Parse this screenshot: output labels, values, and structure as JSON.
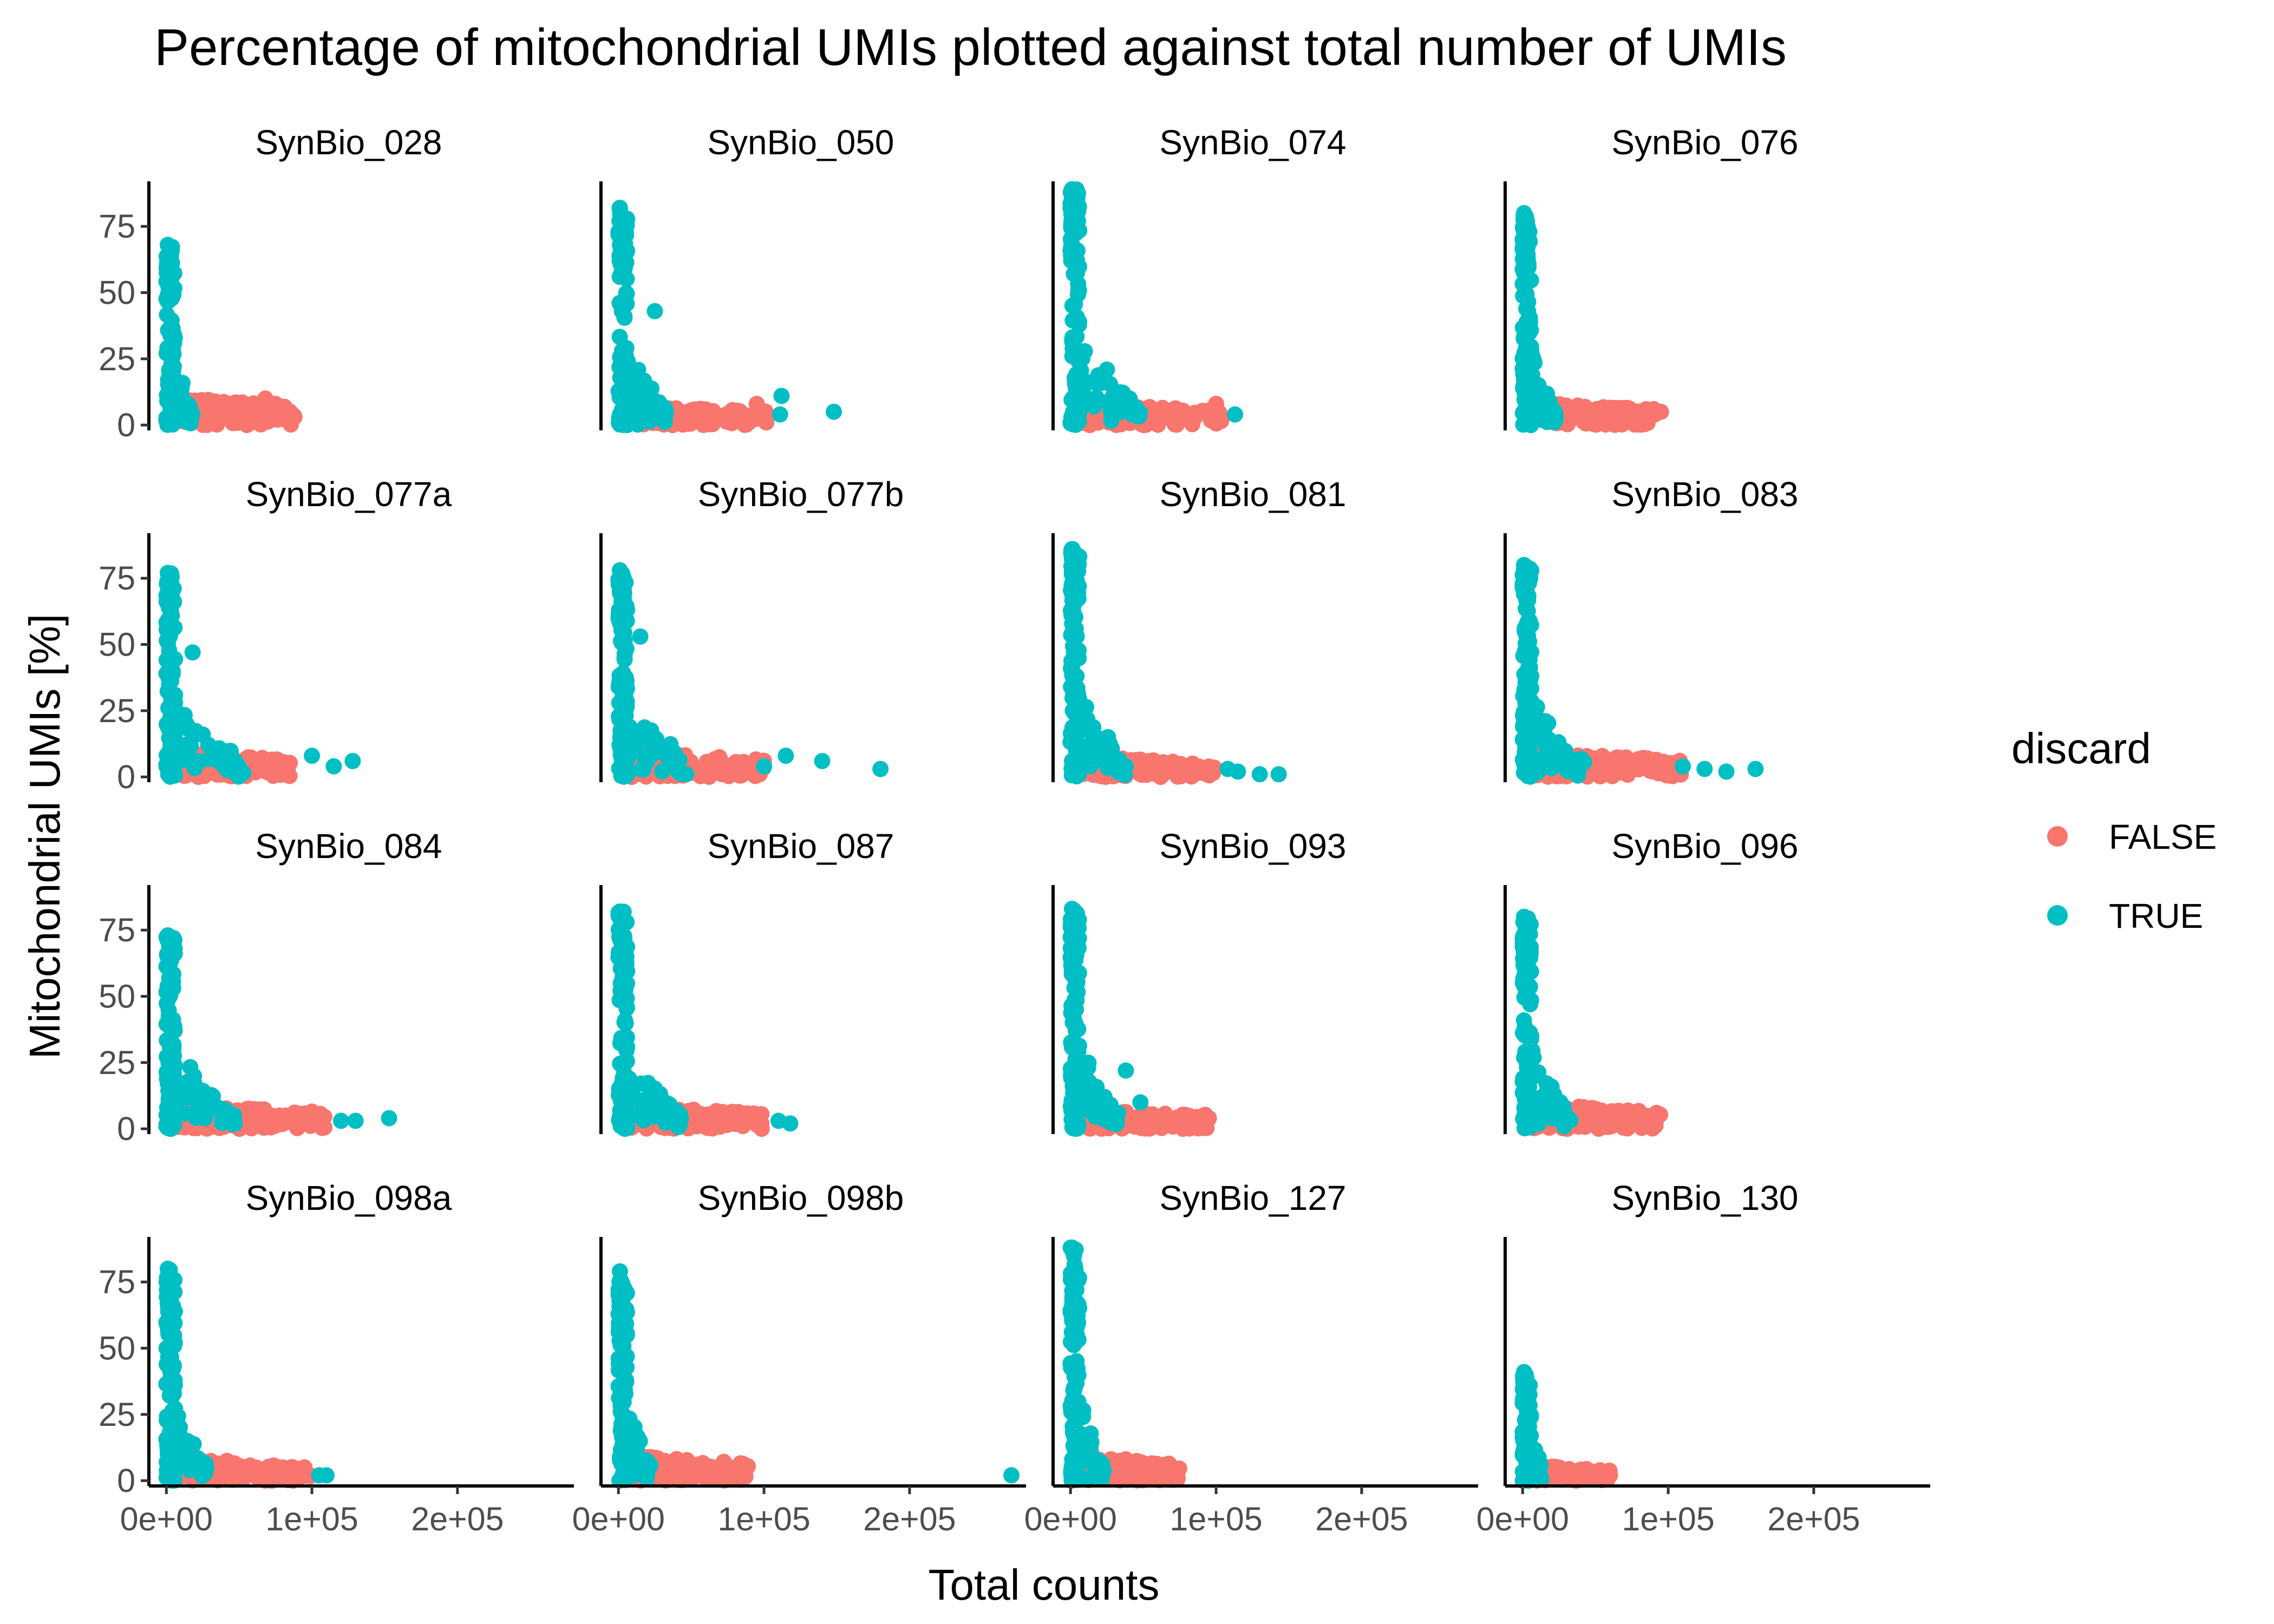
{
  "colors": {
    "FALSE": "#F8766D",
    "TRUE": "#00BFC4"
  },
  "chart_data": {
    "type": "scatter",
    "title": "Percentage of mitochondrial UMIs plotted against total number of UMIs",
    "xlabel": "Total counts",
    "ylabel": "Mitochondrial UMIs [%]",
    "xlim": [
      -12000,
      280000
    ],
    "ylim": [
      -2,
      92
    ],
    "x_ticks": [
      0,
      100000,
      200000
    ],
    "x_tick_labels": [
      "0e+00",
      "1e+05",
      "2e+05"
    ],
    "y_ticks": [
      0,
      25,
      50,
      75
    ],
    "y_tick_labels": [
      "0",
      "25",
      "50",
      "75"
    ],
    "legend": {
      "title": "discard",
      "position": "right",
      "entries": [
        "FALSE",
        "TRUE"
      ]
    },
    "grid": false,
    "panels": [
      {
        "name": "SynBio_028",
        "true_max_x": 15000,
        "true_max_y": 68,
        "false_max_x": 88000,
        "false_max_y": 11,
        "true_outliers": [],
        "false_outliers": [
          [
            68000,
            10
          ],
          [
            75000,
            8
          ],
          [
            88000,
            3
          ]
        ]
      },
      {
        "name": "SynBio_050",
        "true_max_x": 30000,
        "true_max_y": 82,
        "false_max_x": 105000,
        "false_max_y": 8,
        "true_outliers": [
          [
            25000,
            43
          ],
          [
            112000,
            11
          ],
          [
            111000,
            4
          ],
          [
            148000,
            5
          ]
        ],
        "false_outliers": [
          [
            95000,
            8
          ]
        ]
      },
      {
        "name": "SynBio_074",
        "true_max_x": 45000,
        "true_max_y": 89,
        "false_max_x": 105000,
        "false_max_y": 9,
        "true_outliers": [
          [
            113000,
            4
          ]
        ],
        "false_outliers": [
          [
            100000,
            8
          ]
        ]
      },
      {
        "name": "SynBio_076",
        "true_max_x": 20000,
        "true_max_y": 80,
        "false_max_x": 95000,
        "false_max_y": 9,
        "true_outliers": [],
        "false_outliers": [
          [
            60000,
            4
          ],
          [
            90000,
            6
          ],
          [
            95000,
            5
          ]
        ]
      },
      {
        "name": "SynBio_077a",
        "true_max_x": 50000,
        "true_max_y": 77,
        "false_max_x": 85000,
        "false_max_y": 10,
        "true_outliers": [
          [
            18000,
            47
          ],
          [
            100000,
            8
          ],
          [
            115000,
            4
          ],
          [
            128000,
            6
          ]
        ],
        "false_outliers": []
      },
      {
        "name": "SynBio_077b",
        "true_max_x": 45000,
        "true_max_y": 78,
        "false_max_x": 100000,
        "false_max_y": 10,
        "true_outliers": [
          [
            15000,
            53
          ],
          [
            100000,
            4
          ],
          [
            115000,
            8
          ],
          [
            140000,
            6
          ],
          [
            180000,
            3
          ]
        ],
        "false_outliers": []
      },
      {
        "name": "SynBio_081",
        "true_max_x": 35000,
        "true_max_y": 86,
        "false_max_x": 100000,
        "false_max_y": 8,
        "true_outliers": [
          [
            108000,
            3
          ],
          [
            115000,
            2
          ],
          [
            130000,
            1
          ],
          [
            143000,
            1
          ]
        ],
        "false_outliers": []
      },
      {
        "name": "SynBio_083",
        "true_max_x": 40000,
        "true_max_y": 80,
        "false_max_x": 110000,
        "false_max_y": 10,
        "true_outliers": [
          [
            110000,
            4
          ],
          [
            125000,
            3
          ],
          [
            140000,
            2
          ],
          [
            160000,
            3
          ]
        ],
        "false_outliers": []
      },
      {
        "name": "SynBio_084",
        "true_max_x": 45000,
        "true_max_y": 73,
        "false_max_x": 110000,
        "false_max_y": 10,
        "true_outliers": [
          [
            120000,
            3
          ],
          [
            130000,
            3
          ],
          [
            153000,
            4
          ]
        ],
        "false_outliers": []
      },
      {
        "name": "SynBio_087",
        "true_max_x": 40000,
        "true_max_y": 82,
        "false_max_x": 100000,
        "false_max_y": 9,
        "true_outliers": [
          [
            110000,
            3
          ],
          [
            118000,
            2
          ]
        ],
        "false_outliers": []
      },
      {
        "name": "SynBio_093",
        "true_max_x": 30000,
        "true_max_y": 83,
        "false_max_x": 95000,
        "false_max_y": 8,
        "true_outliers": [
          [
            38000,
            22
          ],
          [
            48000,
            10
          ]
        ],
        "false_outliers": [
          [
            95000,
            4
          ]
        ]
      },
      {
        "name": "SynBio_096",
        "true_max_x": 30000,
        "true_max_y": 80,
        "false_max_x": 95000,
        "false_max_y": 10,
        "true_outliers": [],
        "false_outliers": [
          [
            92000,
            6
          ]
        ]
      },
      {
        "name": "SynBio_098a",
        "true_max_x": 25000,
        "true_max_y": 80,
        "false_max_x": 100000,
        "false_max_y": 9,
        "true_outliers": [
          [
            105000,
            2
          ],
          [
            110000,
            2
          ]
        ],
        "false_outliers": []
      },
      {
        "name": "SynBio_098b",
        "true_max_x": 20000,
        "true_max_y": 79,
        "false_max_x": 90000,
        "false_max_y": 10,
        "true_outliers": [
          [
            270000,
            2
          ]
        ],
        "false_outliers": []
      },
      {
        "name": "SynBio_127",
        "true_max_x": 20000,
        "true_max_y": 88,
        "false_max_x": 75000,
        "false_max_y": 10,
        "true_outliers": [],
        "false_outliers": [
          [
            72000,
            4
          ]
        ]
      },
      {
        "name": "SynBio_130",
        "true_max_x": 10000,
        "true_max_y": 41,
        "false_max_x": 60000,
        "false_max_y": 6,
        "true_outliers": [],
        "false_outliers": [
          [
            60000,
            2
          ]
        ]
      }
    ]
  }
}
